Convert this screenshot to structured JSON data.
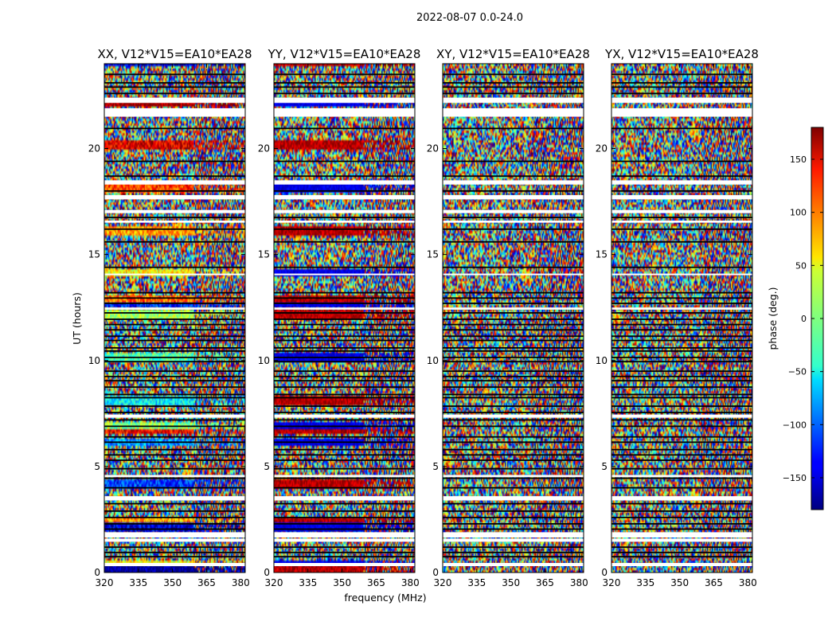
{
  "chart_data": {
    "type": "heatmap",
    "suptitle": "2022-08-07 0.0-24.0",
    "xlabel": "frequency (MHz)",
    "ylabel": "UT (hours)",
    "xlim": [
      320,
      382
    ],
    "ylim": [
      0,
      24
    ],
    "x_ticks": [
      "320",
      "335",
      "350",
      "365",
      "380"
    ],
    "y_ticks": [
      "0",
      "5",
      "10",
      "15",
      "20"
    ],
    "panels": [
      {
        "title": "XX, V12*V15=EA10*EA28",
        "pol": "XX"
      },
      {
        "title": "YY, V12*V15=EA10*EA28",
        "pol": "YY"
      },
      {
        "title": "XY, V12*V15=EA10*EA28",
        "pol": "XY"
      },
      {
        "title": "YX, V12*V15=EA10*EA28",
        "pol": "YX"
      }
    ],
    "colorbar": {
      "label": "phase (deg.)",
      "range": [
        -180,
        180
      ],
      "ticks": [
        "150",
        "100",
        "50",
        "0",
        "−50",
        "−100",
        "−150"
      ],
      "colormap": "jet"
    },
    "white_gap_bands_hours": [
      [
        0.3,
        0.45
      ],
      [
        1.45,
        1.6
      ],
      [
        1.65,
        1.9
      ],
      [
        3.4,
        3.6
      ],
      [
        4.5,
        4.6
      ],
      [
        7.3,
        7.45
      ],
      [
        12.4,
        12.5
      ],
      [
        14.05,
        14.1
      ],
      [
        16.5,
        16.6
      ],
      [
        16.95,
        17.1
      ],
      [
        17.6,
        17.8
      ],
      [
        18.3,
        18.5
      ],
      [
        21.5,
        21.9
      ],
      [
        22.15,
        22.4
      ]
    ],
    "black_line_hours": [
      0.75,
      0.95,
      1.2,
      2.05,
      2.3,
      2.6,
      2.9,
      3.25,
      4.0,
      4.45,
      4.9,
      5.3,
      5.55,
      5.8,
      6.15,
      6.4,
      6.9,
      7.2,
      7.55,
      7.85,
      8.25,
      8.4,
      8.75,
      9.05,
      9.25,
      9.5,
      9.95,
      10.15,
      10.45,
      10.6,
      10.95,
      11.15,
      11.45,
      11.7,
      11.95,
      12.25,
      12.7,
      12.95,
      13.2,
      14.4,
      15.6,
      16.2,
      16.75,
      18.0,
      18.7,
      19.4,
      20.95,
      22.6,
      22.9,
      23.1,
      23.5
    ]
  }
}
